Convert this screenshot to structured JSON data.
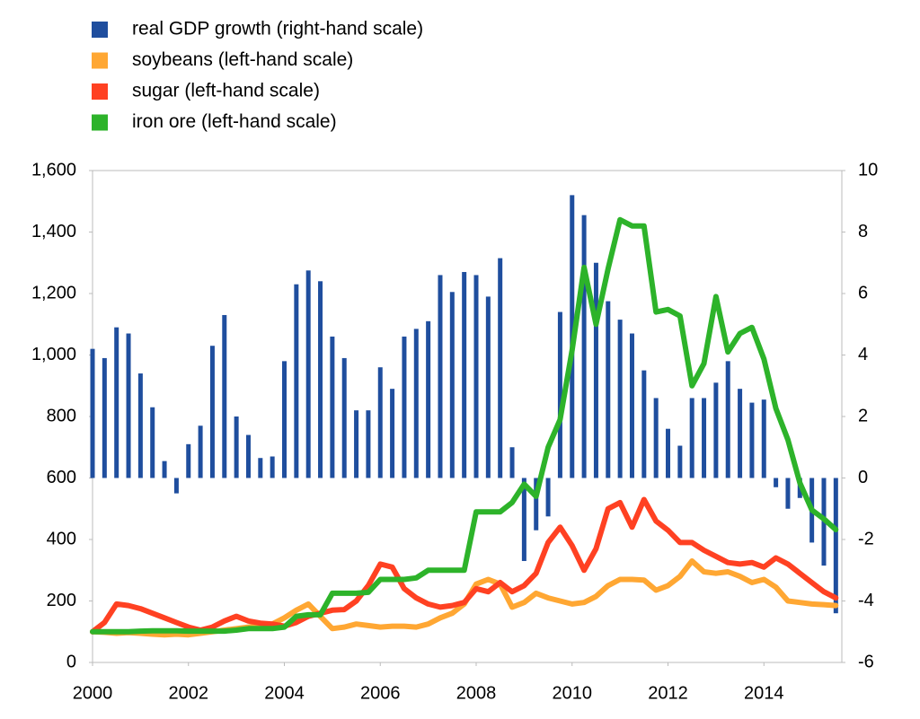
{
  "chart_data": {
    "type": "bar-line",
    "x": [
      2000,
      2000.25,
      2000.5,
      2000.75,
      2001,
      2001.25,
      2001.5,
      2001.75,
      2002,
      2002.25,
      2002.5,
      2002.75,
      2003,
      2003.25,
      2003.5,
      2003.75,
      2004,
      2004.25,
      2004.5,
      2004.75,
      2005,
      2005.25,
      2005.5,
      2005.75,
      2006,
      2006.25,
      2006.5,
      2006.75,
      2007,
      2007.25,
      2007.5,
      2007.75,
      2008,
      2008.25,
      2008.5,
      2008.75,
      2009,
      2009.25,
      2009.5,
      2009.75,
      2010,
      2010.25,
      2010.5,
      2010.75,
      2011,
      2011.25,
      2011.5,
      2011.75,
      2012,
      2012.25,
      2012.5,
      2012.75,
      2013,
      2013.25,
      2013.5,
      2013.75,
      2014,
      2014.25,
      2014.5,
      2014.75,
      2015,
      2015.25,
      2015.5
    ],
    "series": [
      {
        "name": "real GDP growth (right-hand scale)",
        "type": "bar",
        "axis": "y2",
        "color": "#1f4e9e",
        "values": [
          4.2,
          3.9,
          4.9,
          4.7,
          3.4,
          2.3,
          0.55,
          -0.5,
          1.1,
          1.7,
          4.3,
          5.3,
          2.0,
          1.4,
          0.65,
          0.7,
          3.8,
          6.3,
          6.75,
          6.4,
          4.6,
          3.9,
          2.2,
          2.2,
          3.6,
          2.9,
          4.6,
          4.85,
          5.1,
          6.6,
          6.05,
          6.7,
          6.6,
          5.9,
          7.15,
          1.0,
          -2.7,
          -1.7,
          -1.25,
          5.4,
          9.2,
          8.55,
          7.0,
          5.75,
          5.15,
          4.7,
          3.5,
          2.6,
          1.6,
          1.05,
          2.6,
          2.6,
          3.1,
          3.8,
          2.9,
          2.45,
          2.55,
          -0.3,
          -1.0,
          -0.65,
          -2.1,
          -2.85,
          -4.4
        ]
      },
      {
        "name": "soybeans (left-hand scale)",
        "type": "line",
        "color": "#ffa733",
        "values": [
          100,
          98,
          95,
          97,
          95,
          92,
          90,
          92,
          90,
          95,
          100,
          105,
          110,
          115,
          120,
          125,
          145,
          170,
          190,
          150,
          110,
          115,
          125,
          120,
          115,
          118,
          118,
          115,
          125,
          145,
          160,
          190,
          255,
          270,
          255,
          180,
          195,
          225,
          210,
          200,
          190,
          195,
          215,
          250,
          270,
          270,
          268,
          235,
          250,
          280,
          330,
          295,
          290,
          295,
          280,
          260,
          270,
          245,
          200,
          195,
          190,
          188,
          185
        ]
      },
      {
        "name": "sugar (left-hand scale)",
        "type": "line",
        "color": "#ff4122",
        "values": [
          100,
          130,
          190,
          185,
          175,
          160,
          145,
          130,
          115,
          105,
          115,
          135,
          150,
          135,
          128,
          125,
          118,
          130,
          150,
          160,
          170,
          172,
          200,
          250,
          320,
          310,
          240,
          210,
          190,
          180,
          185,
          195,
          240,
          230,
          260,
          230,
          250,
          290,
          390,
          440,
          380,
          300,
          370,
          500,
          520,
          440,
          530,
          460,
          430,
          390,
          390,
          365,
          345,
          325,
          320,
          325,
          310,
          340,
          320,
          290,
          260,
          230,
          210
        ]
      },
      {
        "name": "iron ore (left-hand scale)",
        "type": "line",
        "color": "#2db32a",
        "values": [
          100,
          100,
          100,
          100,
          102,
          103,
          103,
          103,
          102,
          102,
          102,
          102,
          105,
          110,
          110,
          110,
          115,
          150,
          155,
          155,
          225,
          225,
          225,
          228,
          270,
          270,
          270,
          275,
          300,
          300,
          300,
          300,
          490,
          490,
          490,
          520,
          580,
          540,
          700,
          790,
          1016,
          1285,
          1100,
          1280,
          1440,
          1420,
          1420,
          1140,
          1148,
          1127,
          900,
          972,
          1190,
          1010,
          1070,
          1090,
          987,
          826,
          724,
          584,
          496,
          467,
          432
        ]
      }
    ],
    "xlim": [
      2000,
      2015.625
    ],
    "xticks": [
      2000,
      2002,
      2004,
      2006,
      2008,
      2010,
      2012,
      2014
    ],
    "ylim": [
      0,
      1600
    ],
    "yticks": [
      0,
      200,
      400,
      600,
      800,
      {
        "value": 1000,
        "label": "1,000"
      },
      {
        "value": 1200,
        "label": "1,200"
      },
      {
        "value": 1400,
        "label": "1,400"
      },
      {
        "value": 1600,
        "label": "1,600"
      }
    ],
    "y2lim": [
      -6,
      10
    ],
    "y2ticks": [
      -6,
      -4,
      -2,
      0,
      2,
      4,
      6,
      8,
      10
    ],
    "grid": false,
    "legend": "top-left"
  }
}
